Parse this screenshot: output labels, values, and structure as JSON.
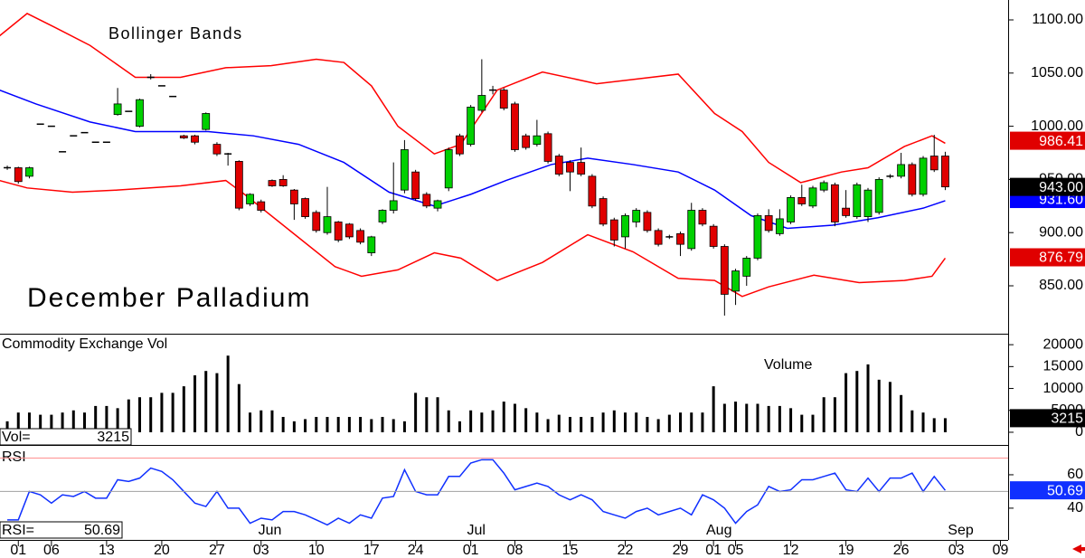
{
  "x_axis": {
    "xlim": [
      -0.66,
      90.7
    ],
    "xticks": [
      {
        "value": 1,
        "label": "01"
      },
      {
        "value": 4,
        "label": "06"
      },
      {
        "value": 9,
        "label": "13"
      },
      {
        "value": 14,
        "label": "20"
      },
      {
        "value": 19,
        "label": "27"
      },
      {
        "value": 23,
        "label": "03"
      },
      {
        "value": 28,
        "label": "10"
      },
      {
        "value": 33,
        "label": "17"
      },
      {
        "value": 37,
        "label": "24"
      },
      {
        "value": 42,
        "label": "01"
      },
      {
        "value": 46,
        "label": "08"
      },
      {
        "value": 51,
        "label": "15"
      },
      {
        "value": 56,
        "label": "22"
      },
      {
        "value": 61,
        "label": "29"
      },
      {
        "value": 64,
        "label": "01"
      },
      {
        "value": 66,
        "label": "05"
      },
      {
        "value": 71,
        "label": "12"
      },
      {
        "value": 76,
        "label": "19"
      },
      {
        "value": 81,
        "label": "26"
      },
      {
        "value": 86,
        "label": "03"
      },
      {
        "value": 90,
        "label": "09"
      }
    ],
    "month_ticks": [
      {
        "value": 23.8,
        "label": "Jun"
      },
      {
        "value": 42.5,
        "label": "Jul"
      },
      {
        "value": 64.5,
        "label": "Aug"
      },
      {
        "value": 86.4,
        "label": "Sep"
      }
    ]
  },
  "chart_data": [
    {
      "type": "candlestick",
      "title": "December Palladium",
      "annotation": "Bollinger Bands",
      "color_up": "#00d000",
      "color_down": "#e00000",
      "ohlc": [
        [
          961,
          963,
          959,
          961
        ],
        [
          961,
          962,
          946,
          948
        ],
        [
          953,
          962,
          951,
          961
        ],
        [
          1002,
          1002,
          1002,
          1002
        ],
        [
          1000,
          1000,
          1000,
          1000
        ],
        [
          976,
          976,
          976,
          976
        ],
        [
          991,
          991,
          991,
          991
        ],
        [
          994,
          994,
          994,
          994
        ],
        [
          985,
          985,
          985,
          985
        ],
        [
          985,
          985,
          985,
          985
        ],
        [
          1011,
          1036,
          1010,
          1021
        ],
        [
          1014,
          1014,
          1014,
          1014
        ],
        [
          1000,
          1026,
          999,
          1025
        ],
        [
          1046,
          1049,
          1044,
          1046
        ],
        [
          1038,
          1038,
          1038,
          1038
        ],
        [
          1028,
          1028,
          1028,
          1028
        ],
        [
          991,
          992,
          988,
          989
        ],
        [
          991,
          992,
          983,
          985
        ],
        [
          997,
          1013,
          996,
          1012
        ],
        [
          983,
          985,
          972,
          974
        ],
        [
          974,
          975,
          963,
          974
        ],
        [
          967,
          968,
          921,
          923
        ],
        [
          927,
          937,
          925,
          936
        ],
        [
          929,
          931,
          919,
          921
        ],
        [
          949,
          950,
          943,
          944
        ],
        [
          950,
          954,
          943,
          944
        ],
        [
          940,
          941,
          912,
          927
        ],
        [
          932,
          933,
          913,
          915
        ],
        [
          919,
          921,
          900,
          902
        ],
        [
          900,
          943,
          898,
          915
        ],
        [
          910,
          911,
          891,
          893
        ],
        [
          908,
          909,
          894,
          896
        ],
        [
          902,
          904,
          889,
          891
        ],
        [
          881,
          897,
          878,
          896
        ],
        [
          910,
          922,
          908,
          921
        ],
        [
          921,
          966,
          918,
          930
        ],
        [
          940,
          987,
          937,
          978
        ],
        [
          957,
          959,
          930,
          932
        ],
        [
          936,
          938,
          923,
          925
        ],
        [
          923,
          931,
          920,
          930
        ],
        [
          942,
          980,
          939,
          978
        ],
        [
          991,
          993,
          972,
          974
        ],
        [
          983,
          1020,
          981,
          1018
        ],
        [
          1015,
          1063,
          1013,
          1029
        ],
        [
          1034,
          1038,
          1030,
          1034
        ],
        [
          1034,
          1036,
          1015,
          1017
        ],
        [
          1021,
          1023,
          976,
          978
        ],
        [
          991,
          993,
          978,
          980
        ],
        [
          983,
          1006,
          981,
          991
        ],
        [
          993,
          995,
          965,
          967
        ],
        [
          972,
          974,
          953,
          955
        ],
        [
          966,
          968,
          939,
          957
        ],
        [
          966,
          980,
          953,
          955
        ],
        [
          953,
          955,
          923,
          925
        ],
        [
          932,
          934,
          906,
          908
        ],
        [
          912,
          914,
          887,
          893
        ],
        [
          896,
          918,
          885,
          916
        ],
        [
          910,
          923,
          905,
          921
        ],
        [
          919,
          921,
          900,
          902
        ],
        [
          902,
          904,
          887,
          889
        ],
        [
          896,
          898,
          894,
          896
        ],
        [
          899,
          901,
          878,
          889
        ],
        [
          885,
          928,
          883,
          921
        ],
        [
          921,
          923,
          906,
          908
        ],
        [
          906,
          908,
          885,
          887
        ],
        [
          887,
          889,
          822,
          842
        ],
        [
          845,
          866,
          832,
          864
        ],
        [
          859,
          878,
          850,
          876
        ],
        [
          876,
          918,
          874,
          916
        ],
        [
          916,
          922,
          900,
          902
        ],
        [
          899,
          922,
          897,
          913
        ],
        [
          910,
          935,
          908,
          933
        ],
        [
          933,
          945,
          925,
          927
        ],
        [
          925,
          944,
          923,
          942
        ],
        [
          940,
          949,
          938,
          947
        ],
        [
          945,
          947,
          906,
          910
        ],
        [
          923,
          940,
          914,
          916
        ],
        [
          915,
          947,
          913,
          945
        ],
        [
          915,
          942,
          910,
          940
        ],
        [
          919,
          952,
          917,
          950
        ],
        [
          953,
          955,
          951,
          953
        ],
        [
          953,
          975,
          951,
          964
        ],
        [
          964,
          966,
          934,
          936
        ],
        [
          936,
          972,
          934,
          970
        ],
        [
          972,
          992,
          957,
          959
        ],
        [
          972,
          976,
          940,
          943
        ]
      ],
      "bands": [
        {
          "color": "#ff0000",
          "x": [
            -0.7,
            1.8,
            4.3,
            7.5,
            11.6,
            15.7,
            19.8,
            23.9,
            28,
            30.5,
            33,
            35.4,
            38.7,
            41.1,
            44.4,
            48.5,
            53.4,
            56.7,
            60.8,
            64.1,
            66.6,
            69,
            71.9,
            75.6,
            78,
            81.3,
            83.8,
            85
          ],
          "values": [
            1085,
            1106,
            1093,
            1076,
            1046,
            1046,
            1055,
            1057,
            1063,
            1060,
            1038,
            1000,
            974,
            983,
            1034,
            1051,
            1040,
            1044,
            1049,
            1012,
            995,
            966,
            947,
            957,
            961,
            981,
            991,
            984
          ]
        },
        {
          "color": "#0000ff",
          "x": [
            -0.7,
            2.6,
            7.5,
            11.6,
            18.2,
            22.3,
            26.4,
            30.5,
            34.6,
            38.7,
            42,
            45.2,
            49.3,
            52.6,
            56.7,
            60.8,
            64.1,
            67.4,
            70.7,
            74.8,
            78.9,
            83,
            85
          ],
          "values": [
            1034,
            1021,
            1004,
            995,
            995,
            991,
            983,
            966,
            938,
            925,
            936,
            949,
            964,
            970,
            964,
            957,
            940,
            916,
            904,
            907,
            914,
            923,
            930
          ]
        },
        {
          "color": "#ff0000",
          "x": [
            -0.7,
            1.8,
            5.9,
            10,
            15.7,
            19.8,
            21.5,
            25.6,
            29.7,
            32.1,
            35.4,
            38.7,
            41.1,
            44.4,
            48.5,
            52.6,
            56.7,
            60.8,
            64.1,
            66.6,
            69,
            73.1,
            77.2,
            81.3,
            83.8,
            85
          ],
          "values": [
            949,
            942,
            938,
            940,
            944,
            949,
            936,
            902,
            868,
            859,
            865,
            881,
            876,
            855,
            872,
            898,
            882,
            857,
            855,
            840,
            849,
            860,
            853,
            855,
            859,
            876
          ]
        }
      ],
      "ylim": [
        805.8,
        1118.7
      ],
      "yticks": [
        {
          "value": 850,
          "label": "850.00"
        },
        {
          "value": 900,
          "label": "900.00"
        },
        {
          "value": 950,
          "label": "950.00"
        },
        {
          "value": 1000,
          "label": "1000.00"
        },
        {
          "value": 1050,
          "label": "1050.00"
        },
        {
          "value": 1100,
          "label": "1100.00"
        }
      ],
      "last_values": [
        {
          "value": 986.41,
          "color": "#e00000"
        },
        {
          "value": 931.6,
          "label": "931.60",
          "color": "#0000ff"
        },
        {
          "value": 943,
          "label": "943.00",
          "color": "#000000"
        },
        {
          "value": 876.79,
          "color": "#e00000"
        }
      ]
    },
    {
      "type": "bar",
      "title": "Commodity Exchange Vol",
      "annotation": "Volume",
      "color": "#000000",
      "values": [
        2500,
        4500,
        4500,
        4000,
        4000,
        4500,
        5000,
        4500,
        6000,
        6000,
        5500,
        7500,
        8000,
        8000,
        9000,
        9000,
        10500,
        13000,
        14000,
        13500,
        17500,
        11000,
        4500,
        5000,
        5000,
        3500,
        2500,
        3000,
        3500,
        3500,
        3500,
        3500,
        3500,
        3000,
        3500,
        3000,
        2500,
        9000,
        8000,
        8000,
        5000,
        2500,
        5000,
        4500,
        5000,
        7000,
        6500,
        5500,
        4500,
        3000,
        4000,
        3500,
        3500,
        3500,
        4500,
        5000,
        4500,
        4500,
        3500,
        3000,
        4000,
        4500,
        4500,
        4500,
        10500,
        6500,
        7000,
        6500,
        6500,
        6000,
        6000,
        5500,
        4000,
        4000,
        8000,
        8000,
        13500,
        14000,
        15500,
        12000,
        11500,
        8500,
        5000,
        4500,
        3215,
        3215
      ],
      "ylim": [
        -2900,
        22300
      ],
      "yticks": [
        0,
        5000,
        10000,
        15000,
        20000
      ],
      "readout_label": "Vol=",
      "last_value": 3215,
      "last_color": "#000000"
    },
    {
      "type": "line",
      "title": "RSI",
      "color": "#1030ff",
      "values": [
        33,
        33,
        50,
        48,
        43,
        48,
        47,
        50,
        46,
        46,
        57,
        56,
        58,
        64,
        62,
        57,
        50,
        43,
        41,
        50,
        40,
        40,
        31,
        34,
        33,
        38,
        38,
        36,
        33,
        30,
        34,
        31,
        36,
        34,
        46,
        47,
        63,
        50,
        48,
        48,
        59,
        59,
        67,
        69,
        69,
        61,
        51,
        53,
        55,
        53,
        48,
        45,
        48,
        45,
        38,
        36,
        34,
        38,
        40,
        36,
        38,
        40,
        36,
        48,
        45,
        40,
        31,
        38,
        42,
        53,
        50,
        51,
        57,
        57,
        59,
        61,
        51,
        50,
        58,
        50,
        58,
        58,
        61,
        50,
        59,
        50.69
      ],
      "reference_lines": [
        {
          "value": 70,
          "color": "#ff9090"
        },
        {
          "value": 50,
          "color": "#a0a0a0"
        }
      ],
      "ylim": [
        21,
        77.3
      ],
      "yticks": [
        40,
        60
      ],
      "readout_label": "RSI=",
      "last_value": 50.69,
      "last_color": "#1030ff"
    }
  ]
}
